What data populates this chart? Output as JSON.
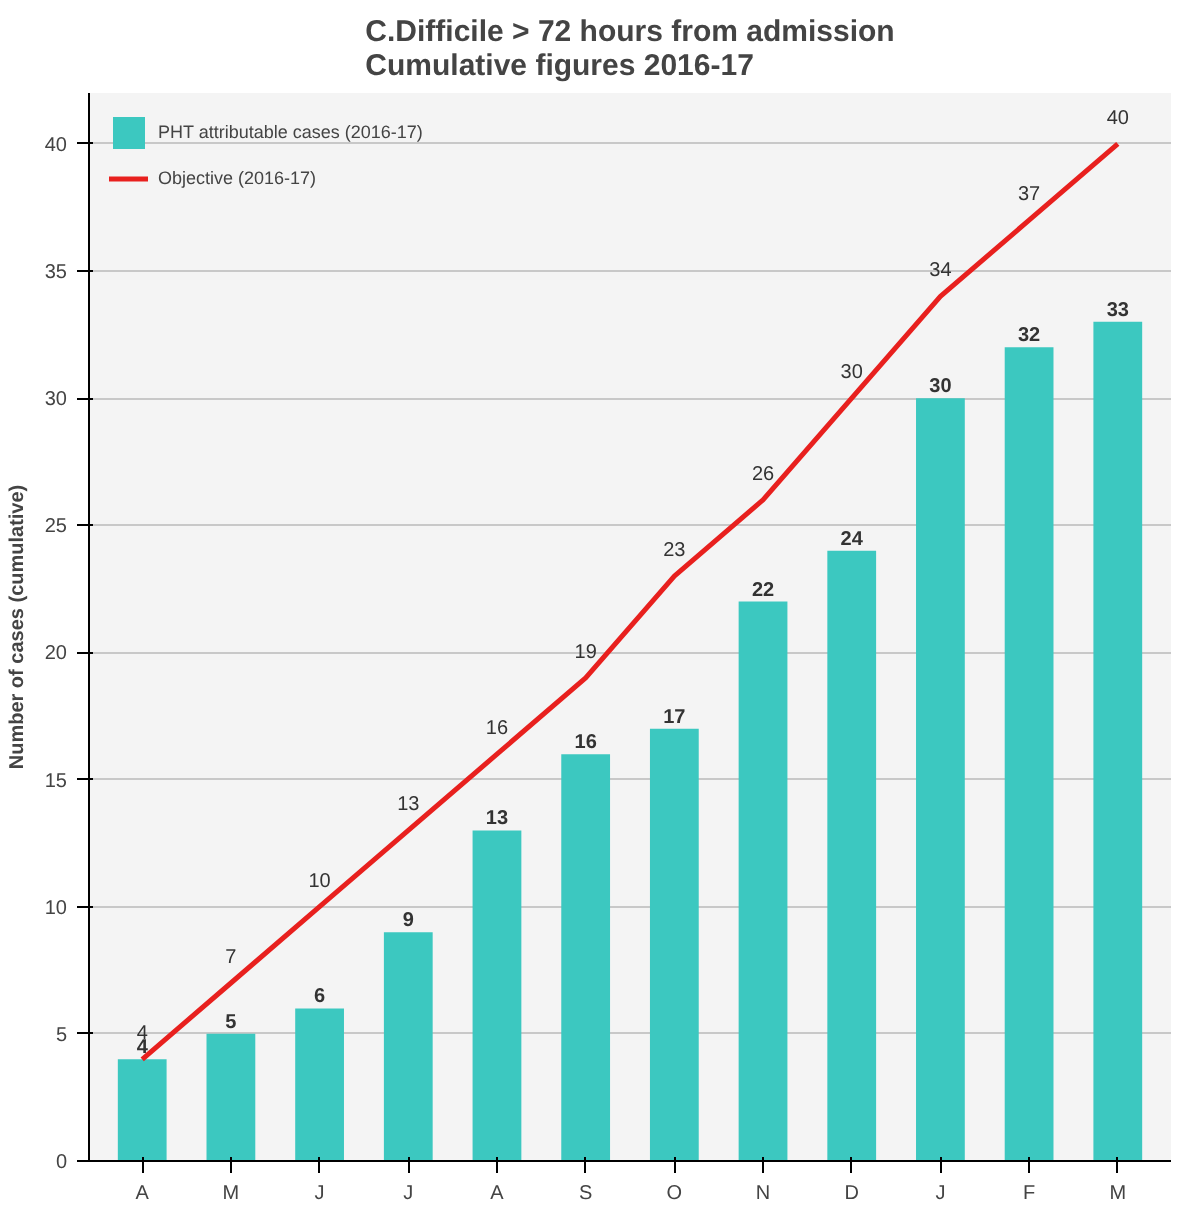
{
  "chart_data": {
    "type": "bar",
    "title": "C.Difficile > 72 hours from admission\nCumulative figures 2016-17",
    "ylabel": "Number of cases (cumulative)",
    "categories": [
      "A",
      "M",
      "J",
      "J",
      "A",
      "S",
      "O",
      "N",
      "D",
      "J",
      "F",
      "M"
    ],
    "series": [
      {
        "name": "PHT attributable cases (2016-17)",
        "color": "#3cc8c0",
        "values": [
          4,
          5,
          6,
          9,
          13,
          16,
          17,
          22,
          24,
          30,
          32,
          33
        ]
      },
      {
        "name": "Objective (2016-17)",
        "type": "line",
        "color": "#e8201e",
        "values": [
          4,
          7,
          10,
          13,
          16,
          19,
          23,
          26,
          30,
          34,
          37,
          40
        ]
      }
    ],
    "ylim": [
      0,
      42
    ],
    "yticks": [
      0,
      5,
      10,
      15,
      20,
      25,
      30,
      35,
      40
    ],
    "grid": "y",
    "legend": "top left",
    "data_labels": true,
    "marker": "none",
    "line_style": "solid"
  }
}
